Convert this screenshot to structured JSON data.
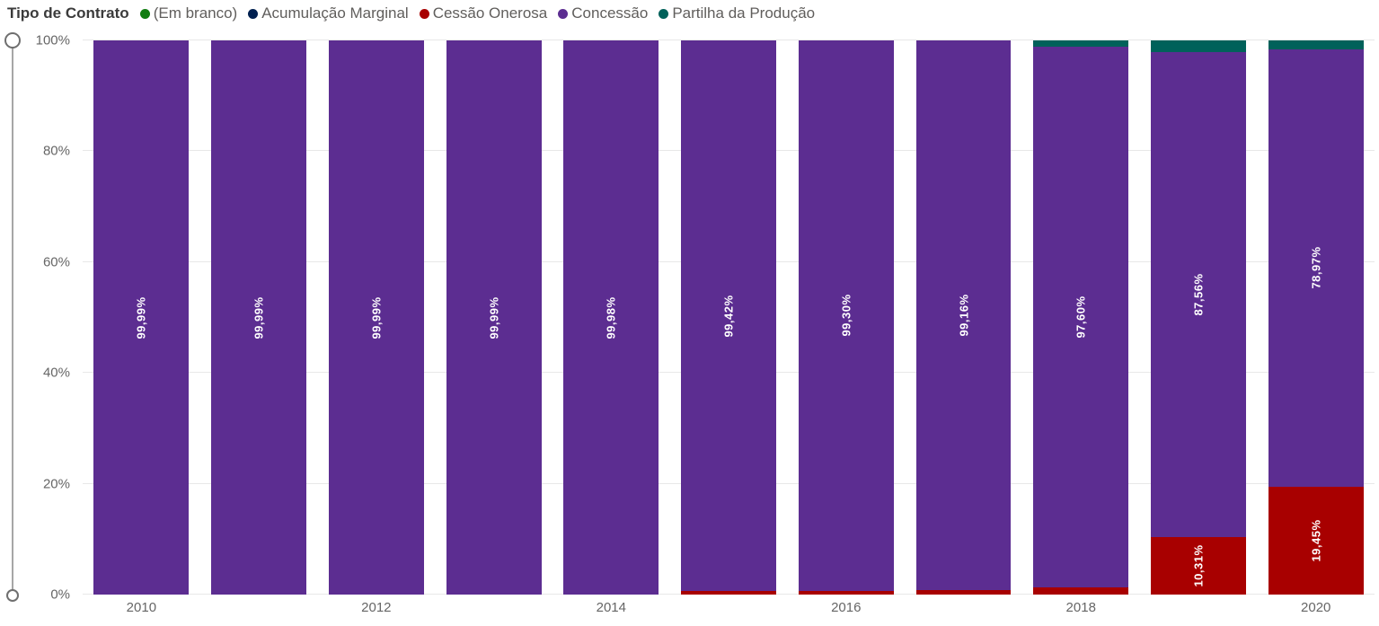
{
  "header": {
    "title": "Tipo de Contrato"
  },
  "y_axis": {
    "ticks": [
      {
        "label": "100%",
        "value": 100
      },
      {
        "label": "80%",
        "value": 80
      },
      {
        "label": "60%",
        "value": 60
      },
      {
        "label": "40%",
        "value": 40
      },
      {
        "label": "20%",
        "value": 20
      },
      {
        "label": "0%",
        "value": 0
      }
    ]
  },
  "chart_data": {
    "type": "bar",
    "stacked": true,
    "stacked_100_percent": true,
    "title": "Tipo de Contrato",
    "grid": true,
    "legend_position": "top",
    "ylim": [
      0,
      100
    ],
    "categories": [
      "2010",
      "2011",
      "2012",
      "2013",
      "2014",
      "2015",
      "2016",
      "2017",
      "2018",
      "2019",
      "2020"
    ],
    "x_tick_labels": [
      "2010",
      "",
      "2012",
      "",
      "2014",
      "",
      "2016",
      "",
      "2018",
      "",
      "2020"
    ],
    "legend": [
      {
        "label": "(Em branco)",
        "color": "#107c10"
      },
      {
        "label": "Acumulação Marginal",
        "color": "#002050"
      },
      {
        "label": "Cessão Onerosa",
        "color": "#a80000"
      },
      {
        "label": "Concessão",
        "color": "#5c2d91"
      },
      {
        "label": "Partilha da Produção",
        "color": "#00615a"
      }
    ],
    "series": [
      {
        "name": "(Em branco)",
        "color": "#107c10",
        "values": [
          0,
          0,
          0,
          0,
          0,
          0,
          0,
          0,
          0,
          0,
          0
        ],
        "labels": [
          "",
          "",
          "",
          "",
          "",
          "",
          "",
          "",
          "",
          "",
          ""
        ]
      },
      {
        "name": "Acumulação Marginal",
        "color": "#002050",
        "values": [
          0,
          0,
          0,
          0,
          0,
          0,
          0,
          0,
          0,
          0,
          0
        ],
        "labels": [
          "",
          "",
          "",
          "",
          "",
          "",
          "",
          "",
          "",
          "",
          ""
        ]
      },
      {
        "name": "Cessão Onerosa",
        "color": "#a80000",
        "values": [
          0,
          0,
          0,
          0,
          0.01,
          0.58,
          0.7,
          0.84,
          1.3,
          10.31,
          19.45
        ],
        "labels": [
          "",
          "",
          "",
          "",
          "",
          "",
          "",
          "",
          "",
          "10,31%",
          "19,45%"
        ]
      },
      {
        "name": "Concessão",
        "color": "#5c2d91",
        "values": [
          99.99,
          99.99,
          99.99,
          99.99,
          99.98,
          99.42,
          99.3,
          99.16,
          97.6,
          87.56,
          78.97
        ],
        "labels": [
          "99,99%",
          "99,99%",
          "99,99%",
          "99,99%",
          "99,98%",
          "99,42%",
          "99,30%",
          "99,16%",
          "97,60%",
          "87,56%",
          "78,97%"
        ]
      },
      {
        "name": "Partilha da Produção",
        "color": "#00615a",
        "values": [
          0.01,
          0.01,
          0.01,
          0.01,
          0.01,
          0,
          0,
          0,
          1.1,
          2.13,
          1.58
        ],
        "labels": [
          "",
          "",
          "",
          "",
          "",
          "",
          "",
          "",
          "",
          "",
          ""
        ]
      }
    ]
  }
}
